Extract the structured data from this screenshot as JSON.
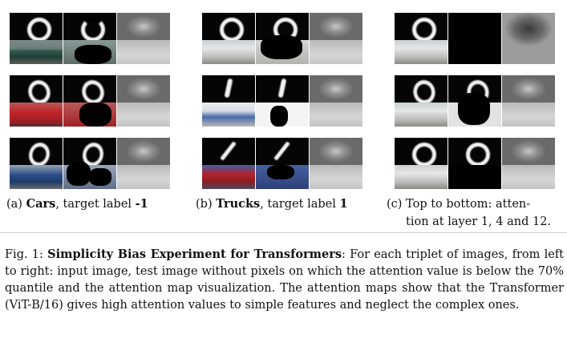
{
  "subcaptions": {
    "a": {
      "tag": "(a)",
      "bold": "Cars",
      "rest": ", target label ",
      "label": "-1"
    },
    "b": {
      "tag": "(b)",
      "bold": "Trucks",
      "rest": ", target label ",
      "label": "1"
    },
    "c": {
      "line1": "(c) Top to bottom: atten-",
      "line2": "tion at layer 1, 4 and 12."
    }
  },
  "figure_caption": {
    "prefix": "Fig. 1: ",
    "title": "Simplicity Bias Experiment for Transformers",
    "body": ": For each triplet of images, from left to right: input image, test image without pixels on which the attention value is below the 70% quantile and the attention map visualization. The attention maps show that the Transformer (ViT-B/16) gives high attention values to simple features and neglect the complex ones."
  },
  "colors": {
    "car_green": "#2f5a4e",
    "car_red": "#c0252a",
    "car_blue": "#2d4f8a",
    "truck_white": "#e6e6e6",
    "truck_red": "#b4232a"
  }
}
